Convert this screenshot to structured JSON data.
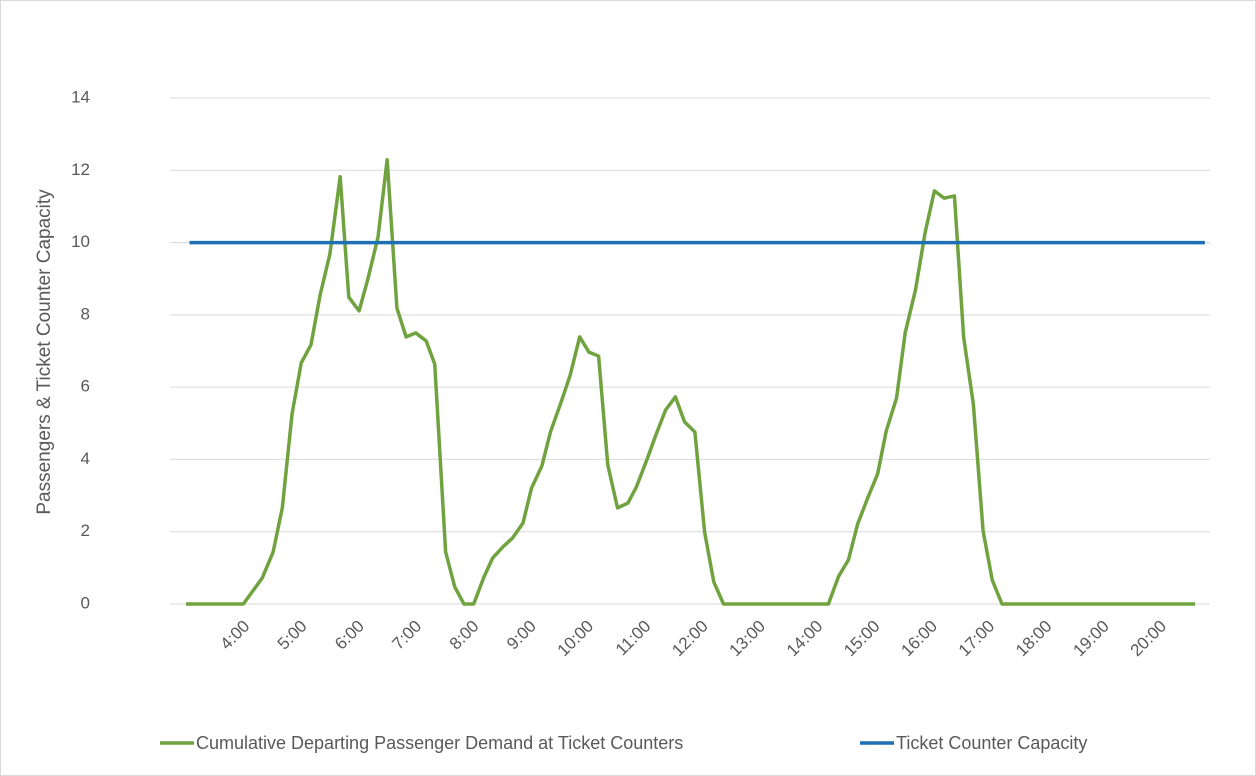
{
  "chart_data": {
    "type": "line",
    "y_label": "Passengers & Ticket Counter Capacity",
    "xlim": [
      2.65,
      20.8
    ],
    "xticks": [
      {
        "value": 4,
        "label": "4:00"
      },
      {
        "value": 5,
        "label": "5:00"
      },
      {
        "value": 6,
        "label": "6:00"
      },
      {
        "value": 7,
        "label": "7:00"
      },
      {
        "value": 8,
        "label": "8:00"
      },
      {
        "value": 9,
        "label": "9:00"
      },
      {
        "value": 10,
        "label": "10:00"
      },
      {
        "value": 11,
        "label": "11:00"
      },
      {
        "value": 12,
        "label": "12:00"
      },
      {
        "value": 13,
        "label": "13:00"
      },
      {
        "value": 14,
        "label": "14:00"
      },
      {
        "value": 15,
        "label": "15:00"
      },
      {
        "value": 16,
        "label": "16:00"
      },
      {
        "value": 17,
        "label": "17:00"
      },
      {
        "value": 18,
        "label": "18:00"
      },
      {
        "value": 19,
        "label": "19:00"
      },
      {
        "value": 20,
        "label": "20:00"
      }
    ],
    "ylim": [
      0,
      14
    ],
    "yticks": [
      0,
      2,
      4,
      6,
      8,
      10,
      12,
      14
    ],
    "grid": true,
    "legend": "bottom",
    "series": [
      {
        "name": "Cumulative Departing Passenger Demand at Ticket Counters",
        "color": "#70a33f",
        "x": [
          2.93,
          3.93,
          4.26,
          4.45,
          4.61,
          4.78,
          4.94,
          5.11,
          5.27,
          5.44,
          5.62,
          5.77,
          5.95,
          6.1,
          6.28,
          6.44,
          6.61,
          6.77,
          6.94,
          7.12,
          7.27,
          7.46,
          7.62,
          7.78,
          7.95,
          8.13,
          8.28,
          8.46,
          8.63,
          8.81,
          8.96,
          9.14,
          9.29,
          9.47,
          9.63,
          9.8,
          9.96,
          10.13,
          10.29,
          10.46,
          10.64,
          10.79,
          10.97,
          11.13,
          11.3,
          11.47,
          11.63,
          11.81,
          11.98,
          12.14,
          12.31,
          14.14,
          14.32,
          14.49,
          14.65,
          14.82,
          15.0,
          15.15,
          15.33,
          15.48,
          15.66,
          15.83,
          15.99,
          16.16,
          16.34,
          16.5,
          16.67,
          16.84,
          17.0,
          17.17,
          20.54
        ],
        "values": [
          0,
          0,
          0.72,
          1.44,
          2.66,
          5.26,
          6.67,
          7.17,
          8.55,
          9.68,
          11.82,
          8.49,
          8.11,
          8.97,
          10.15,
          12.29,
          8.19,
          7.39,
          7.5,
          7.28,
          6.64,
          1.44,
          0.47,
          0,
          0,
          0.75,
          1.27,
          1.58,
          1.83,
          2.24,
          3.21,
          3.82,
          4.76,
          5.56,
          6.31,
          7.39,
          6.97,
          6.86,
          3.85,
          2.66,
          2.79,
          3.24,
          3.98,
          4.68,
          5.37,
          5.73,
          5.04,
          4.76,
          1.99,
          0.61,
          0,
          0,
          0.77,
          1.22,
          2.21,
          2.91,
          3.6,
          4.79,
          5.7,
          7.5,
          8.69,
          10.29,
          11.43,
          11.23,
          11.29,
          7.39,
          5.53,
          2.02,
          0.66,
          0,
          0
        ]
      },
      {
        "name": "Ticket Counter Capacity",
        "color": "#1f6fb4",
        "x": [
          2.99,
          20.71
        ],
        "values": [
          10,
          10
        ]
      }
    ]
  }
}
